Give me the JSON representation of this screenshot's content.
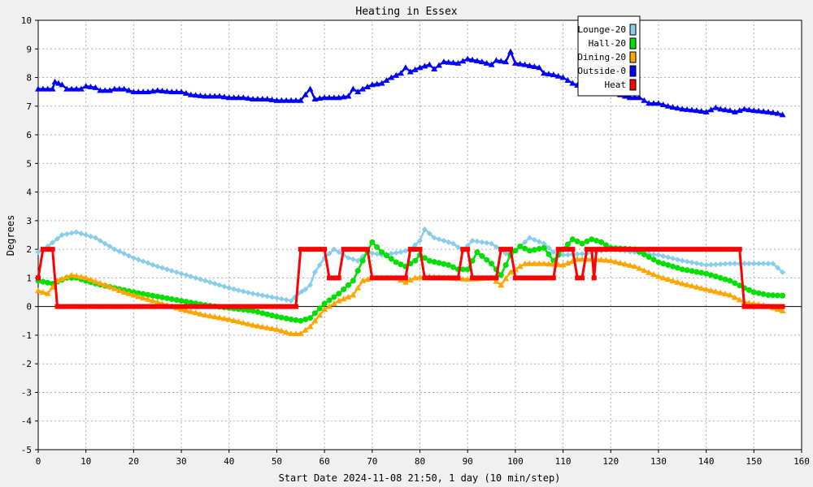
{
  "chart_data": {
    "type": "line",
    "title": "Heating in Essex",
    "xlabel": "Start Date 2024-11-08 21:50, 1 day (10 min/step)",
    "ylabel": "Degrees",
    "xlim": [
      0,
      160
    ],
    "ylim": [
      -5,
      10
    ],
    "xticks": [
      0,
      10,
      20,
      30,
      40,
      50,
      60,
      70,
      80,
      90,
      100,
      110,
      120,
      130,
      140,
      150,
      160
    ],
    "yticks": [
      -5,
      -4,
      -3,
      -2,
      -1,
      0,
      1,
      2,
      3,
      4,
      5,
      6,
      7,
      8,
      9,
      10
    ],
    "grid": true,
    "legend_position": "top-right",
    "series": [
      {
        "name": "Lounge-20",
        "color": "#87ceeb",
        "marker": "diamond",
        "points": [
          [
            0,
            1.9
          ],
          [
            2,
            2.1
          ],
          [
            5,
            2.5
          ],
          [
            8,
            2.6
          ],
          [
            12,
            2.4
          ],
          [
            16,
            2.0
          ],
          [
            20,
            1.7
          ],
          [
            25,
            1.4
          ],
          [
            30,
            1.15
          ],
          [
            35,
            0.9
          ],
          [
            40,
            0.65
          ],
          [
            45,
            0.45
          ],
          [
            50,
            0.3
          ],
          [
            53,
            0.2
          ],
          [
            54.5,
            0.45
          ],
          [
            56,
            0.6
          ],
          [
            57,
            0.75
          ],
          [
            58,
            1.2
          ],
          [
            60,
            1.7
          ],
          [
            62,
            2.0
          ],
          [
            65,
            1.7
          ],
          [
            67,
            1.6
          ],
          [
            69,
            1.9
          ],
          [
            72,
            1.8
          ],
          [
            76,
            1.9
          ],
          [
            78,
            2.0
          ],
          [
            80,
            2.3
          ],
          [
            81,
            2.7
          ],
          [
            83,
            2.4
          ],
          [
            87,
            2.2
          ],
          [
            89,
            1.95
          ],
          [
            91,
            2.3
          ],
          [
            95,
            2.2
          ],
          [
            98,
            1.85
          ],
          [
            100,
            1.95
          ],
          [
            103,
            2.4
          ],
          [
            106,
            2.2
          ],
          [
            108,
            1.9
          ],
          [
            110,
            1.8
          ],
          [
            115,
            1.85
          ],
          [
            120,
            2.0
          ],
          [
            125,
            1.9
          ],
          [
            130,
            1.8
          ],
          [
            135,
            1.6
          ],
          [
            140,
            1.45
          ],
          [
            145,
            1.5
          ],
          [
            150,
            1.5
          ],
          [
            154,
            1.5
          ],
          [
            156,
            1.2
          ]
        ]
      },
      {
        "name": "Hall-20",
        "color": "#00e000",
        "marker": "circle",
        "points": [
          [
            0,
            0.9
          ],
          [
            3,
            0.8
          ],
          [
            6,
            1.0
          ],
          [
            8,
            1.0
          ],
          [
            12,
            0.8
          ],
          [
            16,
            0.65
          ],
          [
            20,
            0.5
          ],
          [
            25,
            0.35
          ],
          [
            30,
            0.2
          ],
          [
            35,
            0.05
          ],
          [
            40,
            -0.05
          ],
          [
            45,
            -0.15
          ],
          [
            50,
            -0.35
          ],
          [
            53,
            -0.45
          ],
          [
            55,
            -0.5
          ],
          [
            57,
            -0.4
          ],
          [
            60,
            0.1
          ],
          [
            63,
            0.45
          ],
          [
            66,
            0.9
          ],
          [
            68,
            1.6
          ],
          [
            70,
            2.25
          ],
          [
            72,
            1.9
          ],
          [
            75,
            1.55
          ],
          [
            77,
            1.4
          ],
          [
            79,
            1.6
          ],
          [
            80,
            1.8
          ],
          [
            82,
            1.6
          ],
          [
            86,
            1.45
          ],
          [
            88,
            1.3
          ],
          [
            90,
            1.3
          ],
          [
            92,
            1.9
          ],
          [
            95,
            1.5
          ],
          [
            97,
            1.1
          ],
          [
            99,
            1.8
          ],
          [
            101,
            2.1
          ],
          [
            103,
            1.95
          ],
          [
            106,
            2.05
          ],
          [
            108,
            1.6
          ],
          [
            110,
            2.0
          ],
          [
            112,
            2.35
          ],
          [
            114,
            2.2
          ],
          [
            116,
            2.35
          ],
          [
            118,
            2.25
          ],
          [
            120,
            2.05
          ],
          [
            125,
            2.0
          ],
          [
            130,
            1.55
          ],
          [
            135,
            1.3
          ],
          [
            140,
            1.15
          ],
          [
            145,
            0.9
          ],
          [
            148,
            0.65
          ],
          [
            150,
            0.5
          ],
          [
            153,
            0.4
          ],
          [
            156,
            0.38
          ]
        ]
      },
      {
        "name": "Dining-20",
        "color": "#ffa500",
        "marker": "triangle",
        "points": [
          [
            0,
            0.55
          ],
          [
            2,
            0.45
          ],
          [
            4,
            0.9
          ],
          [
            7,
            1.1
          ],
          [
            10,
            1.0
          ],
          [
            14,
            0.75
          ],
          [
            18,
            0.5
          ],
          [
            22,
            0.3
          ],
          [
            26,
            0.1
          ],
          [
            30,
            -0.1
          ],
          [
            35,
            -0.3
          ],
          [
            40,
            -0.45
          ],
          [
            45,
            -0.65
          ],
          [
            50,
            -0.8
          ],
          [
            53,
            -0.95
          ],
          [
            55,
            -0.95
          ],
          [
            57,
            -0.7
          ],
          [
            60,
            -0.1
          ],
          [
            63,
            0.2
          ],
          [
            66,
            0.4
          ],
          [
            68,
            0.9
          ],
          [
            70,
            1.0
          ],
          [
            75,
            1.0
          ],
          [
            77,
            0.85
          ],
          [
            79,
            1.0
          ],
          [
            82,
            1.05
          ],
          [
            86,
            1.0
          ],
          [
            90,
            0.95
          ],
          [
            95,
            1.0
          ],
          [
            97,
            0.75
          ],
          [
            99,
            1.2
          ],
          [
            102,
            1.5
          ],
          [
            106,
            1.5
          ],
          [
            110,
            1.45
          ],
          [
            113,
            1.65
          ],
          [
            117,
            1.65
          ],
          [
            120,
            1.6
          ],
          [
            125,
            1.4
          ],
          [
            130,
            1.05
          ],
          [
            135,
            0.8
          ],
          [
            140,
            0.6
          ],
          [
            145,
            0.4
          ],
          [
            148,
            0.15
          ],
          [
            152,
            0.05
          ],
          [
            156,
            -0.15
          ]
        ]
      },
      {
        "name": "Outside-0",
        "color": "#0000ff",
        "marker": "triangle",
        "points": [
          [
            0,
            7.6
          ],
          [
            3,
            7.6
          ],
          [
            3.5,
            7.85
          ],
          [
            5,
            7.75
          ],
          [
            6,
            7.6
          ],
          [
            9,
            7.6
          ],
          [
            10,
            7.7
          ],
          [
            12,
            7.65
          ],
          [
            13,
            7.55
          ],
          [
            15,
            7.55
          ],
          [
            16,
            7.6
          ],
          [
            18,
            7.6
          ],
          [
            20,
            7.5
          ],
          [
            23,
            7.5
          ],
          [
            25,
            7.55
          ],
          [
            28,
            7.5
          ],
          [
            30,
            7.5
          ],
          [
            32,
            7.4
          ],
          [
            35,
            7.35
          ],
          [
            38,
            7.35
          ],
          [
            40,
            7.3
          ],
          [
            43,
            7.3
          ],
          [
            45,
            7.25
          ],
          [
            48,
            7.25
          ],
          [
            50,
            7.2
          ],
          [
            53,
            7.2
          ],
          [
            55,
            7.2
          ],
          [
            57,
            7.6
          ],
          [
            58,
            7.25
          ],
          [
            60,
            7.3
          ],
          [
            63,
            7.3
          ],
          [
            65,
            7.35
          ],
          [
            66,
            7.6
          ],
          [
            67,
            7.5
          ],
          [
            68,
            7.6
          ],
          [
            70,
            7.75
          ],
          [
            72,
            7.8
          ],
          [
            74,
            8.0
          ],
          [
            76,
            8.15
          ],
          [
            77,
            8.35
          ],
          [
            78,
            8.2
          ],
          [
            80,
            8.35
          ],
          [
            82,
            8.45
          ],
          [
            83,
            8.3
          ],
          [
            85,
            8.55
          ],
          [
            88,
            8.5
          ],
          [
            90,
            8.65
          ],
          [
            93,
            8.55
          ],
          [
            95,
            8.45
          ],
          [
            96,
            8.6
          ],
          [
            98,
            8.55
          ],
          [
            99,
            8.9
          ],
          [
            100,
            8.5
          ],
          [
            102,
            8.45
          ],
          [
            105,
            8.35
          ],
          [
            106,
            8.15
          ],
          [
            108,
            8.1
          ],
          [
            110,
            8.0
          ],
          [
            112,
            7.8
          ],
          [
            115,
            7.6
          ],
          [
            117,
            7.55
          ],
          [
            120,
            7.5
          ],
          [
            124,
            7.3
          ],
          [
            126,
            7.3
          ],
          [
            128,
            7.1
          ],
          [
            130,
            7.1
          ],
          [
            132,
            7.0
          ],
          [
            135,
            6.9
          ],
          [
            138,
            6.85
          ],
          [
            140,
            6.8
          ],
          [
            142,
            6.95
          ],
          [
            143,
            6.9
          ],
          [
            145,
            6.85
          ],
          [
            146,
            6.8
          ],
          [
            148,
            6.9
          ],
          [
            150,
            6.85
          ],
          [
            153,
            6.8
          ],
          [
            155,
            6.75
          ],
          [
            156,
            6.7
          ]
        ]
      },
      {
        "name": "Heat",
        "color": "#ff0000",
        "marker": "square",
        "points": [
          [
            0,
            1.0
          ],
          [
            1,
            2.0
          ],
          [
            3,
            2.0
          ],
          [
            4,
            0.0
          ],
          [
            54,
            0.0
          ],
          [
            55,
            2.0
          ],
          [
            60,
            2.0
          ],
          [
            61,
            1.0
          ],
          [
            63,
            1.0
          ],
          [
            64,
            2.0
          ],
          [
            69,
            2.0
          ],
          [
            70,
            1.0
          ],
          [
            77,
            1.0
          ],
          [
            78,
            2.0
          ],
          [
            80,
            2.0
          ],
          [
            81,
            1.0
          ],
          [
            88,
            1.0
          ],
          [
            89,
            2.0
          ],
          [
            90,
            2.0
          ],
          [
            91,
            1.0
          ],
          [
            96,
            1.0
          ],
          [
            97,
            2.0
          ],
          [
            99,
            2.0
          ],
          [
            100,
            1.0
          ],
          [
            108,
            1.0
          ],
          [
            109,
            2.0
          ],
          [
            112,
            2.0
          ],
          [
            113,
            1.0
          ],
          [
            114,
            1.0
          ],
          [
            115,
            2.0
          ],
          [
            116,
            2.0
          ],
          [
            116.5,
            1.0
          ],
          [
            117,
            2.0
          ],
          [
            147,
            2.0
          ],
          [
            148,
            0.0
          ],
          [
            156,
            0.0
          ]
        ]
      }
    ]
  }
}
